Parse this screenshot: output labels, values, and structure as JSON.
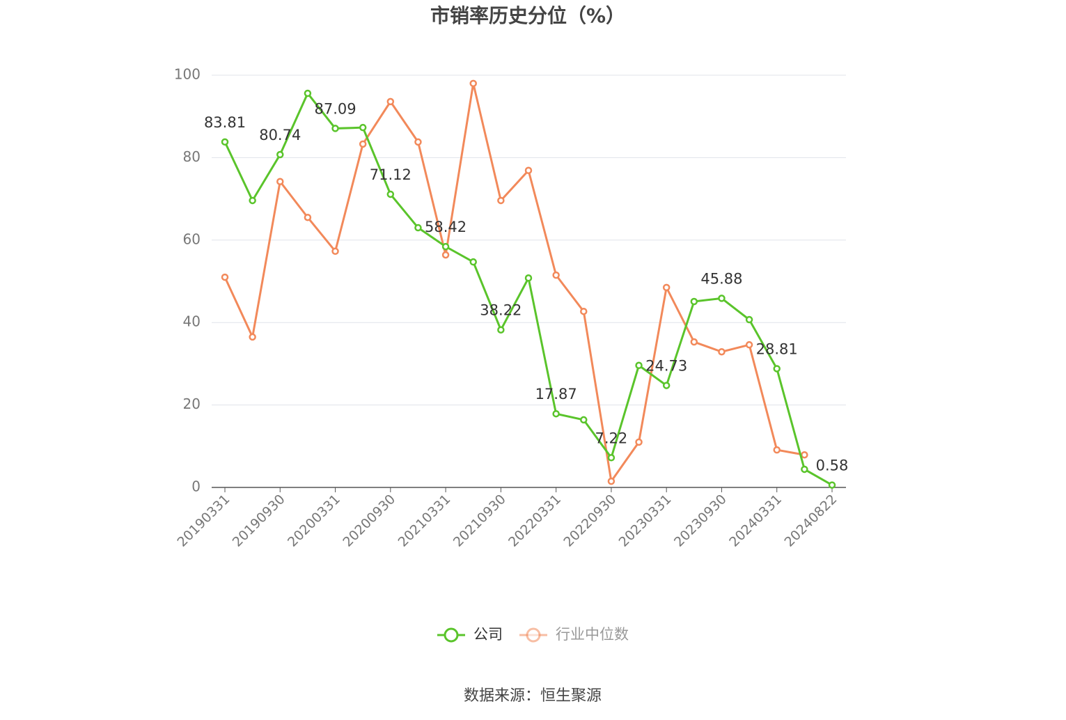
{
  "chart_data": {
    "type": "line",
    "title": "市销率历史分位（%）",
    "source": "数据来源：恒生聚源",
    "categories": [
      "20190331",
      null,
      "20190930",
      null,
      "20200331",
      null,
      "20200930",
      null,
      "20210331",
      null,
      "20210930",
      null,
      "20220331",
      null,
      "20220930",
      null,
      "20230331",
      null,
      "20230930",
      null,
      "20240331",
      null,
      "20240822"
    ],
    "series": [
      {
        "name": "公司",
        "color": "#5ac42b",
        "values": [
          83.81,
          69.6,
          80.74,
          95.6,
          87.09,
          87.3,
          71.12,
          63.0,
          58.42,
          54.7,
          38.22,
          50.8,
          17.87,
          16.4,
          7.22,
          29.6,
          24.73,
          45.1,
          45.88,
          40.7,
          28.81,
          4.4,
          0.58
        ],
        "value_labels": [
          "83.81",
          null,
          "80.74",
          null,
          "87.09",
          null,
          "71.12",
          null,
          "58.42",
          null,
          "38.22",
          null,
          "17.87",
          null,
          "7.22",
          null,
          "24.73",
          null,
          "45.88",
          null,
          "28.81",
          null,
          "0.58"
        ]
      },
      {
        "name": "行业中位数",
        "color": "#f2895a",
        "values": [
          51.0,
          36.5,
          74.2,
          65.5,
          57.3,
          83.3,
          93.6,
          83.8,
          56.4,
          98.0,
          69.6,
          76.9,
          51.5,
          42.7,
          1.5,
          11.0,
          48.5,
          35.3,
          32.9,
          34.6,
          9.1,
          7.9,
          null
        ]
      }
    ],
    "ylim": [
      0,
      100
    ],
    "yticks": [
      0,
      20,
      40,
      60,
      80,
      100
    ],
    "grid": true
  }
}
